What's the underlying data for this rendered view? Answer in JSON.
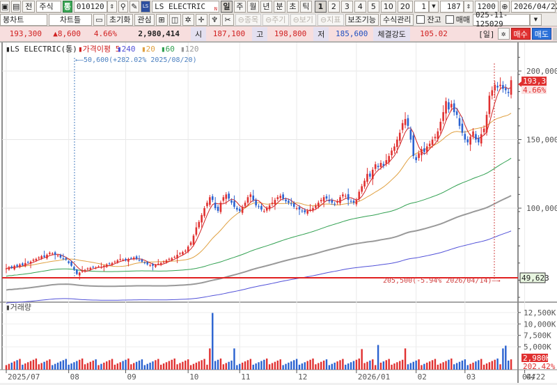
{
  "toolbar1": {
    "icons": [
      "window-icon",
      "print-icon"
    ],
    "prev_label": "전",
    "market_select": "주식",
    "tong_badge": "통",
    "code": "010120",
    "stock_name": "LS ELECTRIC",
    "new_flag": "N",
    "periods": [
      "일",
      "주",
      "월",
      "년",
      "분",
      "초",
      "틱"
    ],
    "active_period": "일",
    "intervals": [
      "1",
      "2",
      "3",
      "4",
      "5",
      "10",
      "20"
    ],
    "active_interval": "1",
    "interval_select": "1",
    "count": "187",
    "total": "1200",
    "date": "2026/04/22"
  },
  "toolbar2": {
    "chart_type": "봉차트",
    "chart_tools": "차트틀",
    "reset": "초기화",
    "watch": "관심",
    "disabled_buttons": [
      "종목",
      "주기",
      "보기",
      "지표"
    ],
    "aux": "보조기능",
    "formula": "수식관리",
    "balance_label": "잔고",
    "trade_label": "매매",
    "account": "025-11-125029"
  },
  "quote": {
    "price": "193,300",
    "change": "▲8,600",
    "change_pct": "4.66%",
    "volume": "2,980,414",
    "open_label": "시",
    "open": "187,100",
    "high_label": "고",
    "high": "198,800",
    "low_label": "저",
    "low": "185,600",
    "strength_label": "체결강도",
    "strength": "105.02",
    "period_tag": "[일]",
    "buy": "매수",
    "sell": "매도"
  },
  "chart_data": {
    "type": "candlestick",
    "title": "LS ELECTRIC(통)",
    "legend": [
      {
        "name": "가격이평 5",
        "color": "#d02020"
      },
      {
        "name": "240",
        "color": "#5050d8"
      },
      {
        "name": "20",
        "color": "#e0a040"
      },
      {
        "name": "60",
        "color": "#30a050"
      },
      {
        "name": "120",
        "color": "#999999"
      }
    ],
    "y_ticks": [
      {
        "v": 200000,
        "label": "200,000"
      },
      {
        "v": 150000,
        "label": "150,000"
      },
      {
        "v": 100000,
        "label": "100,000"
      }
    ],
    "ylim": [
      30000,
      240000
    ],
    "x_ticks": [
      {
        "i": 0,
        "label": "2025/07"
      },
      {
        "i": 23,
        "label": "08"
      },
      {
        "i": 44,
        "label": "09"
      },
      {
        "i": 67,
        "label": "10"
      },
      {
        "i": 86,
        "label": "11"
      },
      {
        "i": 107,
        "label": "12"
      },
      {
        "i": 129,
        "label": "2026/01"
      },
      {
        "i": 151,
        "label": "02"
      },
      {
        "i": 169,
        "label": "03"
      },
      {
        "i": 191,
        "label": "04"
      }
    ],
    "last_date": "04/22",
    "current_price": "193,300",
    "current_pct": "4.66%",
    "low_annotation": "50,600(+282.02% 2025/08/20)",
    "high_annotation": "205,500(-5.94% 2026/04/14)",
    "level_line_label": "49,623",
    "closes": [
      56000,
      57000,
      56500,
      58000,
      57500,
      59000,
      58500,
      60000,
      60500,
      61000,
      62500,
      63000,
      64000,
      65000,
      64500,
      66000,
      67500,
      67000,
      66000,
      65500,
      64000,
      63000,
      62500,
      60000,
      58000,
      55000,
      52000,
      53000,
      54500,
      55000,
      56000,
      56500,
      57000,
      56800,
      57500,
      57000,
      58000,
      59000,
      59500,
      60000,
      61000,
      62000,
      63000,
      62500,
      62000,
      63000,
      63500,
      64000,
      63000,
      62000,
      61000,
      60000,
      59000,
      58500,
      58000,
      58500,
      59500,
      60000,
      61000,
      62000,
      63000,
      63500,
      64500,
      66000,
      67000,
      68000,
      69000,
      72000,
      75000,
      80000,
      86000,
      90000,
      95000,
      100000,
      104000,
      108000,
      106000,
      100000,
      98000,
      104000,
      108000,
      110000,
      107000,
      104000,
      101000,
      99000,
      98000,
      101000,
      104000,
      108000,
      110000,
      106000,
      102000,
      101000,
      99000,
      98000,
      100000,
      102000,
      104000,
      106000,
      108000,
      109000,
      107000,
      105000,
      104000,
      103000,
      101000,
      100000,
      99000,
      98000,
      97000,
      98000,
      99000,
      100000,
      102000,
      104000,
      106000,
      108000,
      107000,
      105000,
      104000,
      103000,
      105000,
      108000,
      110000,
      109000,
      106000,
      105000,
      104000,
      106000,
      112000,
      116000,
      120000,
      125000,
      123000,
      128000,
      132000,
      130000,
      133000,
      131000,
      135000,
      138000,
      142000,
      145000,
      150000,
      155000,
      162000,
      165000,
      160000,
      150000,
      138000,
      135000,
      140000,
      143000,
      141000,
      145000,
      147000,
      150000,
      152000,
      156000,
      163000,
      170000,
      178000,
      172000,
      176000,
      170000,
      168000,
      160000,
      155000,
      150000,
      148000,
      152000,
      156000,
      150000,
      148000,
      154000,
      158000,
      168000,
      182000,
      186000,
      190000,
      188000,
      190000,
      187000,
      186000,
      184000,
      193300
    ],
    "volume": {
      "y_ticks": [
        "12,500K",
        "10,000K",
        "7,500K",
        "5,000K"
      ],
      "current": "2,980K",
      "current_pct": "202.42%",
      "title": "거래량"
    }
  }
}
